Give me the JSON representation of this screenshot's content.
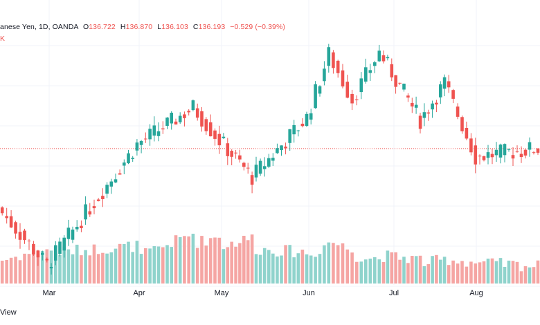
{
  "legend": {
    "symbol": "anese Yen, 1D, OANDA",
    "o_label": "O",
    "o_value": "136.722",
    "h_label": "H",
    "h_value": "136.870",
    "l_label": "L",
    "l_value": "136.103",
    "c_label": "C",
    "c_value": "136.193",
    "change": "−0.529 (−0.39%)",
    "volume_label": "K"
  },
  "bottom_text": "View",
  "colors": {
    "up": "#26a69a",
    "down": "#ef5350",
    "up_volume": "#8fd3cc",
    "down_volume": "#f5a5a3",
    "grid": "#f0f3fa",
    "price_line": "#ef5350"
  },
  "chart_data": {
    "type": "candlestick",
    "price_axis_visible": false,
    "x_ticks": [
      "Mar",
      "Apr",
      "May",
      "Jun",
      "Jul",
      "Aug"
    ],
    "current_price": 136.193,
    "ylim": [
      129.6,
      141.7
    ],
    "grid": true,
    "segments": [
      {
        "from": "start",
        "to": "Mar",
        "price_start": 133.3,
        "price_end": 130.5,
        "volume_start": 0.34,
        "volume_end": 0.52
      },
      {
        "from": "Mar",
        "to": "Apr",
        "price_start": 130.5,
        "price_end": 136.4,
        "volume_start": 0.45,
        "volume_end": 0.55
      },
      {
        "from": "Apr",
        "to": "mid-Apr",
        "price_start": 136.4,
        "price_end": 138.2,
        "volume_start": 0.4,
        "volume_end": 0.75
      },
      {
        "from": "mid-Apr",
        "to": "May",
        "price_start": 138.2,
        "price_end": 136.6,
        "volume_start": 0.6,
        "volume_end": 0.7
      },
      {
        "from": "May",
        "to": "mid-May",
        "price_start": 136.6,
        "price_end": 134.8,
        "volume_start": 0.55,
        "volume_end": 0.68
      },
      {
        "from": "mid-May",
        "to": "Jun",
        "price_start": 134.8,
        "price_end": 137.7,
        "volume_start": 0.5,
        "volume_end": 0.45
      },
      {
        "from": "Jun",
        "to": "mid-Jun",
        "price_start": 137.7,
        "price_end": 140.8,
        "volume_start": 0.4,
        "volume_end": 0.65
      },
      {
        "from": "mid-Jun",
        "to": "late-Jun",
        "price_start": 140.8,
        "price_end": 138.6,
        "volume_start": 0.6,
        "volume_end": 0.45
      },
      {
        "from": "late-Jun",
        "to": "Jul",
        "price_start": 138.6,
        "price_end": 140.9,
        "volume_start": 0.4,
        "volume_end": 0.35
      },
      {
        "from": "Jul",
        "to": "mid-Jul",
        "price_start": 140.9,
        "price_end": 137.6,
        "volume_start": 0.4,
        "volume_end": 0.35
      },
      {
        "from": "mid-Jul",
        "to": "late-Jul",
        "price_start": 137.6,
        "price_end": 139.4,
        "volume_start": 0.3,
        "volume_end": 0.35
      },
      {
        "from": "late-Jul",
        "to": "Aug",
        "price_start": 139.4,
        "price_end": 135.8,
        "volume_start": 0.35,
        "volume_end": 0.3
      },
      {
        "from": "Aug",
        "to": "end",
        "price_start": 135.8,
        "price_end": 136.2,
        "volume_start": 0.3,
        "volume_end": 0.25
      }
    ]
  }
}
